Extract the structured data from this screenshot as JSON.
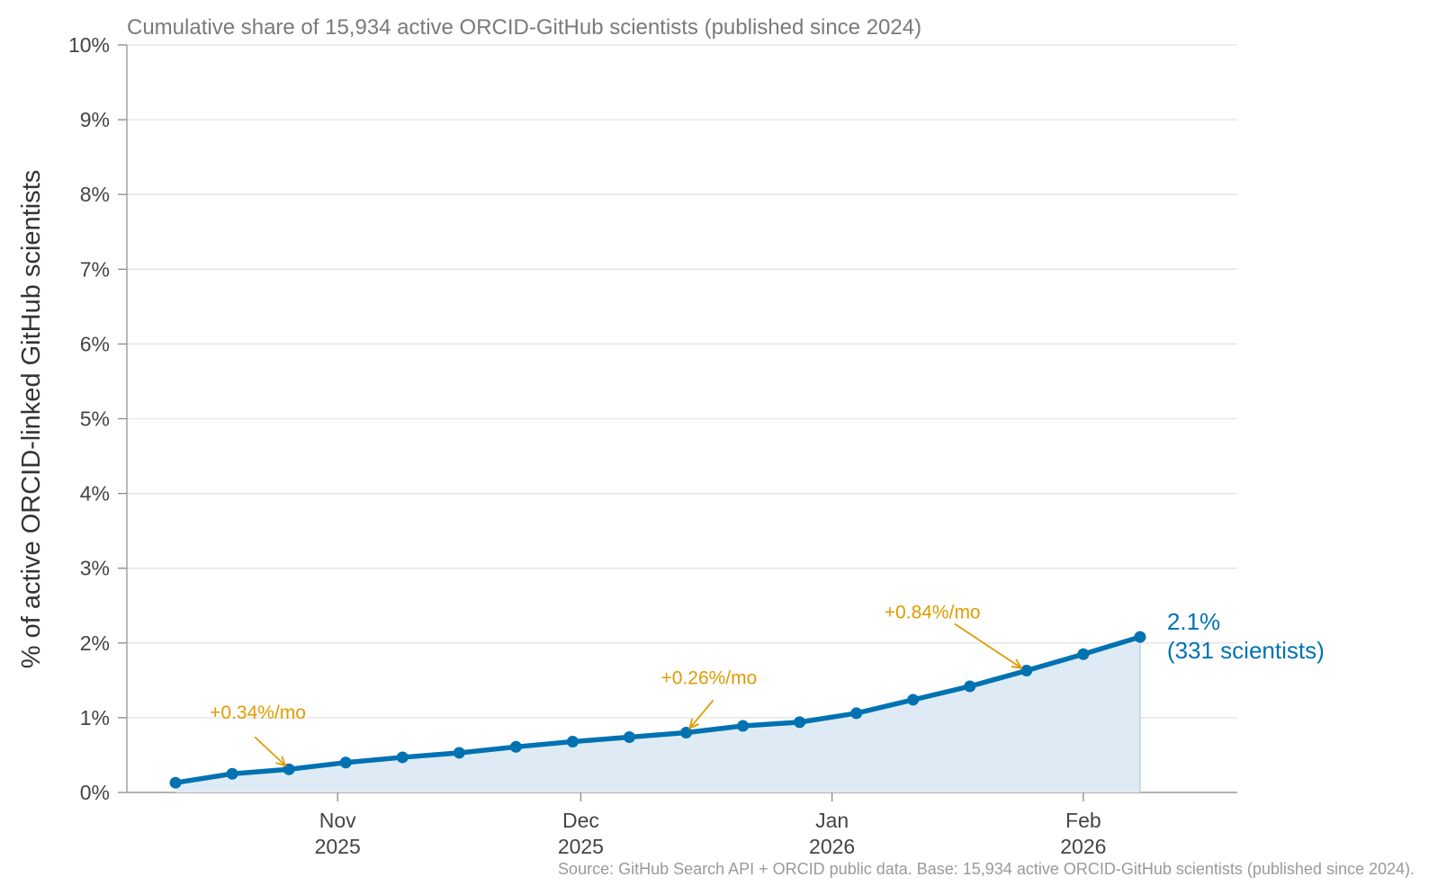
{
  "chart_data": {
    "type": "line",
    "subtitle": "Cumulative share of 15,934 active ORCID-GitHub scientists (published since 2024)",
    "ylabel": "% of active ORCID-linked GitHub scientists",
    "xlabel": "",
    "ylim": [
      0,
      10
    ],
    "y_ticks": [
      0,
      1,
      2,
      3,
      4,
      5,
      6,
      7,
      8,
      9,
      10
    ],
    "y_tick_labels": [
      "0%",
      "1%",
      "2%",
      "3%",
      "4%",
      "5%",
      "6%",
      "7%",
      "8%",
      "9%",
      "10%"
    ],
    "xlim": [
      "2025-10-06",
      "2026-02-20"
    ],
    "x_ticks": [
      {
        "date": "2025-11-01",
        "line1": "Nov",
        "line2": "2025"
      },
      {
        "date": "2025-12-01",
        "line1": "Dec",
        "line2": "2025"
      },
      {
        "date": "2026-01-01",
        "line1": "Jan",
        "line2": "2026"
      },
      {
        "date": "2026-02-01",
        "line1": "Feb",
        "line2": "2026"
      }
    ],
    "grid": true,
    "series": [
      {
        "color": "#0072b2",
        "fill_color": "#deebf4",
        "points": [
          {
            "x": "2025-10-12",
            "y": 0.13
          },
          {
            "x": "2025-10-19",
            "y": 0.25
          },
          {
            "x": "2025-10-26",
            "y": 0.31
          },
          {
            "x": "2025-11-02",
            "y": 0.4
          },
          {
            "x": "2025-11-09",
            "y": 0.47
          },
          {
            "x": "2025-11-16",
            "y": 0.53
          },
          {
            "x": "2025-11-23",
            "y": 0.61
          },
          {
            "x": "2025-11-30",
            "y": 0.68
          },
          {
            "x": "2025-12-07",
            "y": 0.74
          },
          {
            "x": "2025-12-14",
            "y": 0.8
          },
          {
            "x": "2025-12-21",
            "y": 0.89
          },
          {
            "x": "2025-12-28",
            "y": 0.94
          },
          {
            "x": "2026-01-04",
            "y": 1.06
          },
          {
            "x": "2026-01-11",
            "y": 1.24
          },
          {
            "x": "2026-01-18",
            "y": 1.42
          },
          {
            "x": "2026-01-25",
            "y": 1.63
          },
          {
            "x": "2026-02-01",
            "y": 1.85
          },
          {
            "x": "2026-02-08",
            "y": 2.08
          }
        ]
      }
    ],
    "annotations": [
      {
        "text": "+0.34%/mo",
        "color": "#e09b00",
        "arrow_to": {
          "x": "2025-10-26",
          "y": 0.31
        }
      },
      {
        "text": "+0.26%/mo",
        "color": "#e09b00",
        "arrow_to": {
          "x": "2025-12-14",
          "y": 0.8
        }
      },
      {
        "text": "+0.84%/mo",
        "color": "#e09b00",
        "arrow_to": {
          "x": "2026-01-25",
          "y": 1.63
        }
      }
    ],
    "end_label": {
      "line1": "2.1%",
      "line2": "(331 scientists)",
      "color": "#0072b2"
    },
    "source": "Source: GitHub Search API + ORCID public data. Base: 15,934 active ORCID-GitHub scientists (published since 2024)."
  }
}
